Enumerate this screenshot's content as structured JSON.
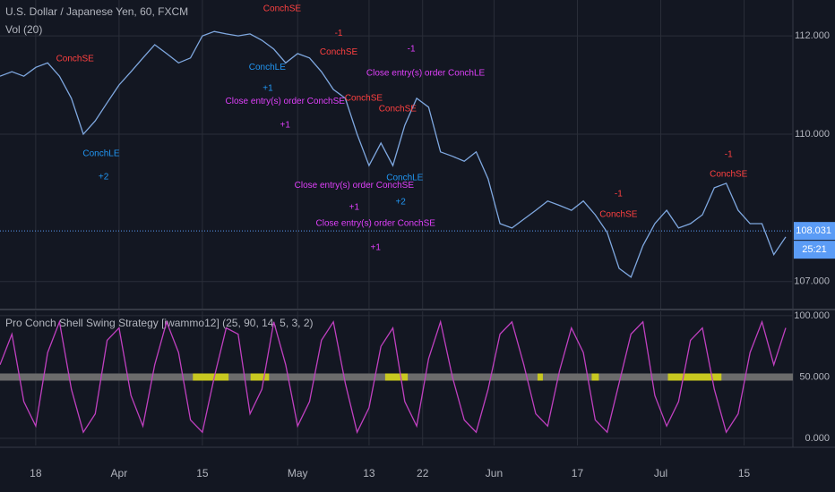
{
  "chart_data": [
    {
      "type": "line",
      "title": "U.S. Dollar / Japanese Yen, 60, FXCM",
      "indicator_label": "Vol (20)",
      "color": "#7fa8e0",
      "background": "#131722",
      "grid": true,
      "x": [
        -6,
        -4,
        -2,
        0,
        2,
        4,
        6,
        8,
        10,
        12,
        14,
        16,
        18,
        20,
        22,
        24,
        26,
        28,
        30,
        32,
        34,
        36,
        38,
        40,
        42,
        44,
        46,
        48,
        50,
        52,
        54,
        56,
        58,
        60,
        62,
        64,
        66,
        68,
        70,
        72,
        74,
        76,
        78,
        80,
        82,
        84,
        86,
        88,
        90,
        92,
        94,
        96,
        98,
        100,
        102,
        104,
        106,
        108,
        110,
        112,
        114,
        116,
        118,
        120,
        122,
        124,
        126
      ],
      "values": [
        111.18,
        111.27,
        111.18,
        111.36,
        111.45,
        111.18,
        110.73,
        110.0,
        110.27,
        110.64,
        111.0,
        111.27,
        111.55,
        111.82,
        111.64,
        111.45,
        111.55,
        112.0,
        112.09,
        112.04,
        112.0,
        112.04,
        111.91,
        111.73,
        111.45,
        111.64,
        111.55,
        111.27,
        110.91,
        110.73,
        110.0,
        109.36,
        109.82,
        109.36,
        110.18,
        110.73,
        110.55,
        109.64,
        109.55,
        109.45,
        109.64,
        109.09,
        108.18,
        108.09,
        108.27,
        108.45,
        108.64,
        108.55,
        108.45,
        108.64,
        108.36,
        108.0,
        107.27,
        107.09,
        107.73,
        108.18,
        108.45,
        108.09,
        108.18,
        108.36,
        108.91,
        109.0,
        108.45,
        108.18,
        108.18,
        107.55,
        107.91
      ],
      "xlim": [
        -6,
        127.2
      ],
      "xticks": [
        {
          "value": 0,
          "label": "18"
        },
        {
          "value": 14,
          "label": "Apr"
        },
        {
          "value": 28,
          "label": "15"
        },
        {
          "value": 44,
          "label": "May"
        },
        {
          "value": 56,
          "label": "13"
        },
        {
          "value": 65,
          "label": "22"
        },
        {
          "value": 77,
          "label": "Jun"
        },
        {
          "value": 91,
          "label": "17"
        },
        {
          "value": 105,
          "label": "Jul"
        },
        {
          "value": 119,
          "label": "15"
        }
      ],
      "ylim": [
        106.45,
        112.73
      ],
      "yticks": [
        {
          "value": 107,
          "label": "107.000"
        },
        {
          "value": 110,
          "label": "110.000"
        },
        {
          "value": 112,
          "label": "112.000"
        }
      ],
      "last_price": 108.031,
      "last_price_color": "#5b9cf6",
      "countdown": "25:21",
      "annotations": [
        {
          "text": "ConchSE",
          "x": 6.6,
          "y": 111.53,
          "color": "#ff4040"
        },
        {
          "text": "ConchLE",
          "x": 11,
          "y": 109.6,
          "color": "#2196f3"
        },
        {
          "text": "+2",
          "x": 11.4,
          "y": 109.13,
          "color": "#2196f3"
        },
        {
          "text": "ConchSE",
          "x": 41.4,
          "y": 112.55,
          "color": "#ff4040"
        },
        {
          "text": "ConchLE",
          "x": 38.9,
          "y": 111.36,
          "color": "#2196f3"
        },
        {
          "text": "+1",
          "x": 39,
          "y": 110.93,
          "color": "#2196f3"
        },
        {
          "text": "Close entry(s) order ConchSE",
          "x": 41.9,
          "y": 110.67,
          "color": "#e040fb"
        },
        {
          "text": "+1",
          "x": 41.9,
          "y": 110.18,
          "color": "#e040fb"
        },
        {
          "text": "-1",
          "x": 50.9,
          "y": 112.05,
          "color": "#ff4040"
        },
        {
          "text": "ConchSE",
          "x": 50.9,
          "y": 111.67,
          "color": "#ff4040"
        },
        {
          "text": "-1",
          "x": 63.1,
          "y": 111.73,
          "color": "#e040fb"
        },
        {
          "text": "Close entry(s) order ConchLE",
          "x": 65.5,
          "y": 111.24,
          "color": "#e040fb"
        },
        {
          "text": "ConchSE",
          "x": 55.1,
          "y": 110.73,
          "color": "#ff4040"
        },
        {
          "text": "ConchSE",
          "x": 60.8,
          "y": 110.51,
          "color": "#ff4040"
        },
        {
          "text": "Close entry(s) order ConchSE",
          "x": 53.5,
          "y": 108.96,
          "color": "#e040fb"
        },
        {
          "text": "+1",
          "x": 53.5,
          "y": 108.51,
          "color": "#e040fb"
        },
        {
          "text": "ConchLE",
          "x": 62,
          "y": 109.11,
          "color": "#2196f3"
        },
        {
          "text": "+2",
          "x": 61.3,
          "y": 108.62,
          "color": "#2196f3"
        },
        {
          "text": "Close entry(s) order ConchSE",
          "x": 57.1,
          "y": 108.18,
          "color": "#e040fb"
        },
        {
          "text": "+1",
          "x": 57.1,
          "y": 107.69,
          "color": "#e040fb"
        },
        {
          "text": "-1",
          "x": 97.9,
          "y": 108.78,
          "color": "#ff4040"
        },
        {
          "text": "ConchSE",
          "x": 97.9,
          "y": 108.36,
          "color": "#ff4040"
        },
        {
          "text": "-1",
          "x": 116.4,
          "y": 109.58,
          "color": "#ff4040"
        },
        {
          "text": "ConchSE",
          "x": 116.4,
          "y": 109.18,
          "color": "#ff4040"
        }
      ]
    },
    {
      "type": "line",
      "title": "Pro Conch Shell Swing Strategy [jwammo12] (25, 90, 14, 5, 3, 2)",
      "color": "#c040c0",
      "band_value": 50,
      "band_color": "#6b6b6b",
      "highlight_color": "#c8c820",
      "highlights": [
        [
          26.4,
          32.4
        ],
        [
          36.1,
          39.2
        ],
        [
          58.7,
          62.5
        ],
        [
          84.3,
          85.2
        ],
        [
          93.4,
          94.6
        ],
        [
          106.2,
          115.2
        ]
      ],
      "x": [
        -6,
        -4,
        -2,
        0,
        2,
        4,
        6,
        8,
        10,
        12,
        14,
        16,
        18,
        20,
        22,
        24,
        26,
        28,
        30,
        32,
        34,
        36,
        38,
        40,
        42,
        44,
        46,
        48,
        50,
        52,
        54,
        56,
        58,
        60,
        62,
        64,
        66,
        68,
        70,
        72,
        74,
        76,
        78,
        80,
        82,
        84,
        86,
        88,
        90,
        92,
        94,
        96,
        98,
        100,
        102,
        104,
        106,
        108,
        110,
        112,
        114,
        116,
        118,
        120,
        122,
        124,
        126
      ],
      "values": [
        60,
        85,
        30,
        10,
        70,
        95,
        40,
        5,
        20,
        80,
        90,
        35,
        10,
        60,
        95,
        70,
        15,
        5,
        50,
        90,
        85,
        20,
        40,
        95,
        60,
        10,
        30,
        80,
        95,
        45,
        5,
        25,
        75,
        90,
        30,
        10,
        65,
        95,
        50,
        15,
        5,
        40,
        85,
        95,
        60,
        20,
        10,
        55,
        90,
        70,
        15,
        5,
        45,
        85,
        95,
        35,
        10,
        30,
        80,
        90,
        40,
        5,
        20,
        70,
        95,
        60,
        90
      ],
      "xlim": [
        -6,
        127.2
      ],
      "ylim": [
        -5.8,
        103.6
      ],
      "yticks": [
        {
          "value": 0,
          "label": "0.000"
        },
        {
          "value": 50,
          "label": "50.000"
        },
        {
          "value": 100,
          "label": "100.000"
        }
      ]
    }
  ]
}
